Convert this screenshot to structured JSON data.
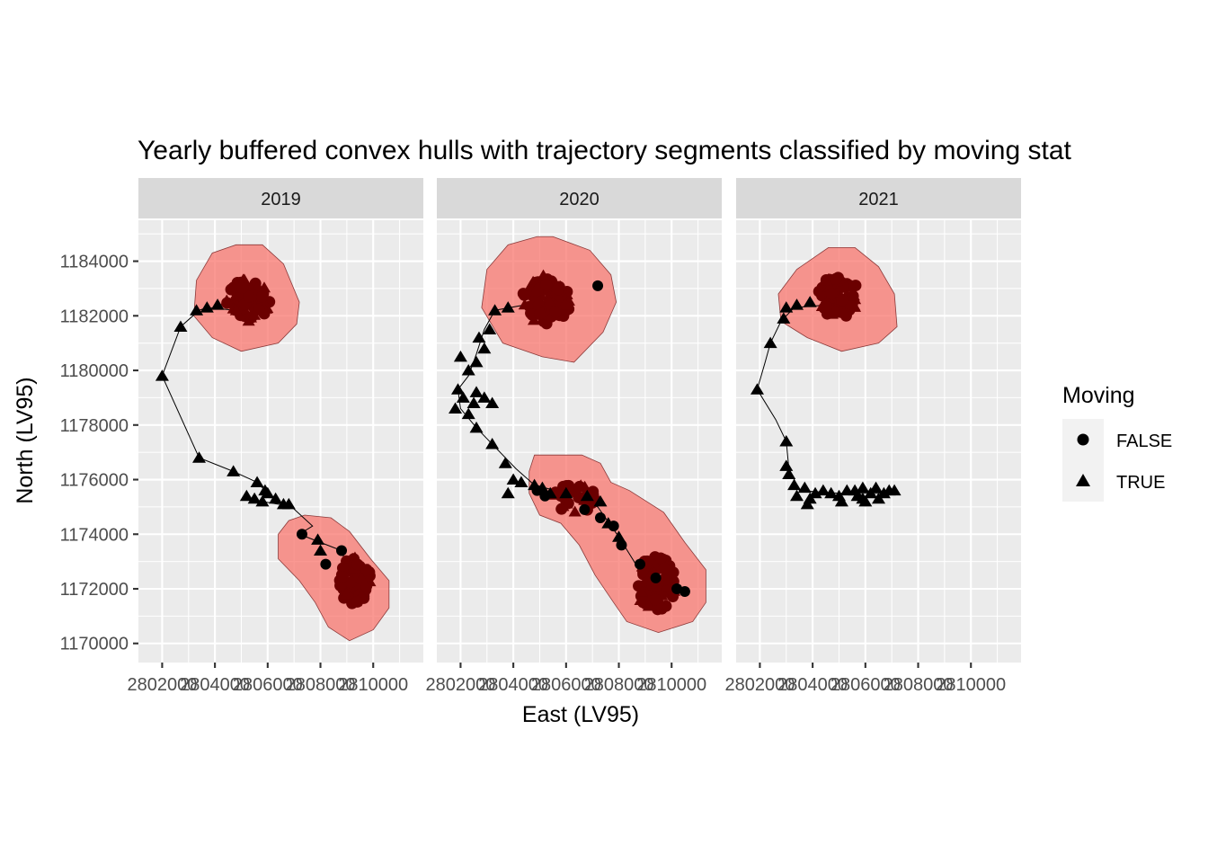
{
  "chart_data": {
    "type": "scatter",
    "title": "Yearly buffered convex hulls with trajectory segments classified by moving stat",
    "xlabel": "East (LV95)",
    "ylabel": "North (LV95)",
    "xlim": [
      2801100,
      2811900
    ],
    "ylim": [
      1169300,
      1185500
    ],
    "x_ticks": [
      2802000,
      2804000,
      2806000,
      2808000,
      2810000
    ],
    "x_tick_labels": [
      "2802000",
      "2804000",
      "2806000",
      "2808000",
      "2810000"
    ],
    "y_ticks": [
      1170000,
      1172000,
      1174000,
      1176000,
      1178000,
      1180000,
      1182000,
      1184000
    ],
    "y_tick_labels": [
      "1170000",
      "1172000",
      "1174000",
      "1176000",
      "1178000",
      "1180000",
      "1182000",
      "1184000"
    ],
    "grid": true,
    "facets": [
      "2019",
      "2020",
      "2021"
    ],
    "legend": {
      "title": "Moving",
      "position": "right",
      "entries": [
        {
          "label": "FALSE",
          "shape": "circle"
        },
        {
          "label": "TRUE",
          "shape": "triangle"
        }
      ]
    },
    "hull_color": "#f8766d",
    "point_color": "#000000",
    "panels": [
      {
        "year": "2019",
        "hulls": [
          {
            "name": "north",
            "polygon": [
              [
                2805800,
                1184600
              ],
              [
                2806600,
                1183900
              ],
              [
                2807200,
                1182500
              ],
              [
                2807100,
                1181700
              ],
              [
                2806400,
                1181000
              ],
              [
                2805000,
                1180700
              ],
              [
                2803900,
                1181200
              ],
              [
                2803200,
                1182000
              ],
              [
                2803300,
                1183300
              ],
              [
                2803900,
                1184300
              ],
              [
                2804800,
                1184600
              ]
            ]
          },
          {
            "name": "south",
            "polygon": [
              [
                2807400,
                1174700
              ],
              [
                2808400,
                1174600
              ],
              [
                2809100,
                1174100
              ],
              [
                2809900,
                1173100
              ],
              [
                2810600,
                1172300
              ],
              [
                2810600,
                1171300
              ],
              [
                2810000,
                1170500
              ],
              [
                2809100,
                1170100
              ],
              [
                2808300,
                1170600
              ],
              [
                2807800,
                1171500
              ],
              [
                2807200,
                1172300
              ],
              [
                2806400,
                1173100
              ],
              [
                2806400,
                1174000
              ],
              [
                2806800,
                1174500
              ]
            ]
          }
        ],
        "clusters": [
          {
            "name": "north",
            "cx": 2805200,
            "cy": 1182600,
            "rx": 1050,
            "ry": 950,
            "n": 70
          },
          {
            "name": "south",
            "cx": 2809300,
            "cy": 1172300,
            "rx": 700,
            "ry": 1100,
            "n": 80
          }
        ],
        "trajectory": [
          [
            2804800,
            1182200
          ],
          [
            2803700,
            1182300
          ],
          [
            2803400,
            1182200
          ],
          [
            2802700,
            1181600
          ],
          [
            2802000,
            1179800
          ],
          [
            2803400,
            1176800
          ],
          [
            2804700,
            1176300
          ],
          [
            2805600,
            1175900
          ],
          [
            2805900,
            1175600
          ],
          [
            2805800,
            1175200
          ],
          [
            2806400,
            1175100
          ],
          [
            2806800,
            1175100
          ],
          [
            2807700,
            1174300
          ],
          [
            2807200,
            1174000
          ],
          [
            2808000,
            1173700
          ],
          [
            2808800,
            1173400
          ],
          [
            2809000,
            1172800
          ]
        ],
        "moving_points": [
          [
            2803300,
            1182200
          ],
          [
            2803700,
            1182300
          ],
          [
            2804100,
            1182400
          ],
          [
            2802700,
            1181600
          ],
          [
            2802000,
            1179800
          ],
          [
            2803400,
            1176800
          ],
          [
            2804700,
            1176300
          ],
          [
            2805600,
            1175900
          ],
          [
            2805900,
            1175600
          ],
          [
            2805200,
            1175400
          ],
          [
            2805500,
            1175300
          ],
          [
            2805800,
            1175200
          ],
          [
            2806000,
            1175500
          ],
          [
            2806300,
            1175300
          ],
          [
            2806600,
            1175100
          ],
          [
            2806800,
            1175100
          ],
          [
            2807900,
            1173800
          ],
          [
            2808000,
            1173400
          ]
        ],
        "stationary_points": [
          [
            2807300,
            1174000
          ],
          [
            2808200,
            1172900
          ],
          [
            2808800,
            1173400
          ]
        ]
      },
      {
        "year": "2020",
        "hulls": [
          {
            "name": "north",
            "polygon": [
              [
                2805500,
                1184900
              ],
              [
                2806900,
                1184400
              ],
              [
                2807700,
                1183500
              ],
              [
                2807900,
                1182500
              ],
              [
                2807400,
                1181400
              ],
              [
                2806300,
                1180300
              ],
              [
                2805100,
                1180500
              ],
              [
                2803600,
                1181000
              ],
              [
                2802800,
                1182300
              ],
              [
                2803000,
                1183700
              ],
              [
                2803800,
                1184600
              ],
              [
                2804900,
                1184900
              ]
            ]
          },
          {
            "name": "south",
            "polygon": [
              [
                2804800,
                1176900
              ],
              [
                2806600,
                1176900
              ],
              [
                2807300,
                1176600
              ],
              [
                2807700,
                1175900
              ],
              [
                2808400,
                1175600
              ],
              [
                2809700,
                1174800
              ],
              [
                2810500,
                1173700
              ],
              [
                2811300,
                1172700
              ],
              [
                2811300,
                1171500
              ],
              [
                2810800,
                1170800
              ],
              [
                2809500,
                1170400
              ],
              [
                2808300,
                1170800
              ],
              [
                2807800,
                1171500
              ],
              [
                2807100,
                1172500
              ],
              [
                2806500,
                1173600
              ],
              [
                2805800,
                1174400
              ],
              [
                2805000,
                1174700
              ],
              [
                2804600,
                1175500
              ],
              [
                2804600,
                1176300
              ]
            ]
          }
        ],
        "clusters": [
          {
            "name": "north",
            "cx": 2805200,
            "cy": 1182600,
            "rx": 1150,
            "ry": 1050,
            "n": 80
          },
          {
            "name": "se",
            "cx": 2806300,
            "cy": 1175300,
            "rx": 1050,
            "ry": 600,
            "n": 40
          },
          {
            "name": "south",
            "cx": 2809400,
            "cy": 1172200,
            "rx": 900,
            "ry": 1200,
            "n": 90
          }
        ],
        "trajectory": [
          [
            2805000,
            1182500
          ],
          [
            2803300,
            1182200
          ],
          [
            2802900,
            1181500
          ],
          [
            2802600,
            1180600
          ],
          [
            2802300,
            1179800
          ],
          [
            2801900,
            1179300
          ],
          [
            2802000,
            1178600
          ],
          [
            2802600,
            1177900
          ],
          [
            2803200,
            1177300
          ],
          [
            2804100,
            1176400
          ],
          [
            2804800,
            1175800
          ],
          [
            2806000,
            1175500
          ],
          [
            2807200,
            1175000
          ],
          [
            2808000,
            1173900
          ],
          [
            2808900,
            1172500
          ],
          [
            2809300,
            1171800
          ]
        ],
        "moving_points": [
          [
            2802000,
            1180500
          ],
          [
            2802300,
            1180000
          ],
          [
            2801900,
            1179300
          ],
          [
            2802100,
            1179000
          ],
          [
            2802500,
            1178800
          ],
          [
            2802600,
            1179200
          ],
          [
            2802900,
            1179000
          ],
          [
            2803200,
            1178800
          ],
          [
            2801800,
            1178600
          ],
          [
            2802300,
            1178400
          ],
          [
            2802600,
            1177900
          ],
          [
            2803200,
            1177300
          ],
          [
            2803700,
            1176600
          ],
          [
            2804000,
            1176000
          ],
          [
            2804300,
            1175900
          ],
          [
            2803800,
            1175500
          ],
          [
            2804800,
            1175800
          ],
          [
            2805100,
            1175700
          ],
          [
            2802600,
            1180300
          ],
          [
            2802900,
            1180800
          ],
          [
            2802700,
            1181200
          ],
          [
            2803100,
            1181500
          ],
          [
            2803300,
            1182200
          ],
          [
            2803800,
            1182300
          ],
          [
            2806000,
            1175500
          ],
          [
            2805400,
            1175500
          ],
          [
            2806800,
            1175400
          ],
          [
            2807300,
            1175200
          ],
          [
            2807600,
            1174400
          ],
          [
            2808000,
            1173900
          ]
        ],
        "stationary_points": [
          [
            2804900,
            1175600
          ],
          [
            2805200,
            1175400
          ],
          [
            2806700,
            1174900
          ],
          [
            2807300,
            1174600
          ],
          [
            2807800,
            1174300
          ],
          [
            2808100,
            1173600
          ],
          [
            2808800,
            1172900
          ],
          [
            2809400,
            1172400
          ],
          [
            2810200,
            1172000
          ],
          [
            2810500,
            1171900
          ],
          [
            2807200,
            1183100
          ]
        ]
      },
      {
        "year": "2021",
        "hulls": [
          {
            "name": "north",
            "polygon": [
              [
                2805600,
                1184500
              ],
              [
                2806500,
                1183800
              ],
              [
                2807100,
                1182800
              ],
              [
                2807200,
                1181600
              ],
              [
                2806500,
                1181000
              ],
              [
                2805100,
                1180700
              ],
              [
                2803800,
                1181200
              ],
              [
                2802800,
                1181800
              ],
              [
                2802700,
                1182800
              ],
              [
                2803400,
                1183700
              ],
              [
                2804600,
                1184500
              ]
            ]
          }
        ],
        "clusters": [
          {
            "name": "north",
            "cx": 2805000,
            "cy": 1182700,
            "rx": 950,
            "ry": 900,
            "n": 60
          }
        ],
        "trajectory": [
          [
            2804600,
            1182400
          ],
          [
            2803300,
            1182300
          ],
          [
            2802800,
            1181800
          ],
          [
            2802400,
            1181000
          ],
          [
            2802200,
            1180300
          ],
          [
            2801900,
            1179300
          ],
          [
            2802600,
            1178200
          ],
          [
            2803000,
            1177400
          ],
          [
            2803100,
            1176400
          ],
          [
            2803500,
            1175600
          ],
          [
            2805000,
            1175500
          ],
          [
            2806500,
            1175500
          ],
          [
            2807100,
            1175600
          ]
        ],
        "moving_points": [
          [
            2803000,
            1182300
          ],
          [
            2803400,
            1182400
          ],
          [
            2803900,
            1182500
          ],
          [
            2802900,
            1181900
          ],
          [
            2802400,
            1181000
          ],
          [
            2801900,
            1179300
          ],
          [
            2803000,
            1177400
          ],
          [
            2803000,
            1176500
          ],
          [
            2803100,
            1176200
          ],
          [
            2803300,
            1175800
          ],
          [
            2803700,
            1175700
          ],
          [
            2803400,
            1175400
          ],
          [
            2803900,
            1175300
          ],
          [
            2804100,
            1175500
          ],
          [
            2804400,
            1175600
          ],
          [
            2803800,
            1175100
          ],
          [
            2804700,
            1175500
          ],
          [
            2805000,
            1175400
          ],
          [
            2805300,
            1175600
          ],
          [
            2805600,
            1175600
          ],
          [
            2805700,
            1175400
          ],
          [
            2805900,
            1175700
          ],
          [
            2805900,
            1175300
          ],
          [
            2806200,
            1175500
          ],
          [
            2806400,
            1175700
          ],
          [
            2806500,
            1175300
          ],
          [
            2806700,
            1175500
          ],
          [
            2806900,
            1175600
          ],
          [
            2807100,
            1175600
          ],
          [
            2805100,
            1175200
          ],
          [
            2806000,
            1175200
          ]
        ],
        "stationary_points": []
      }
    ]
  }
}
